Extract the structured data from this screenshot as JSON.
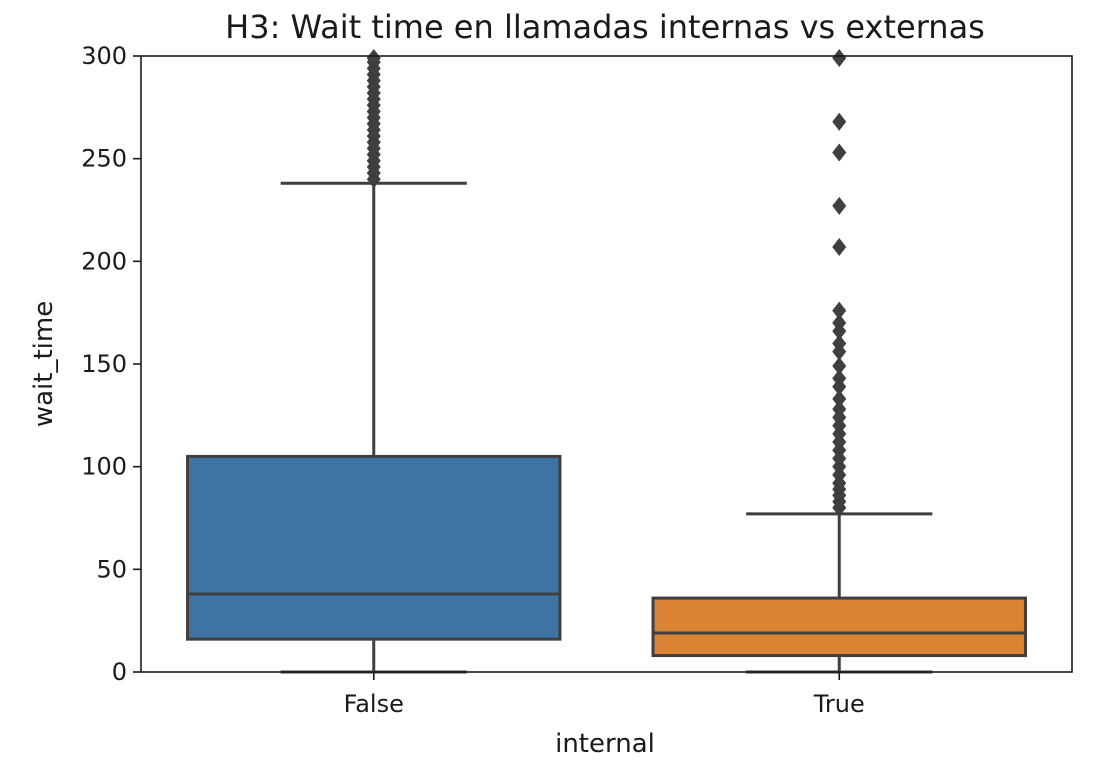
{
  "chart_data": {
    "type": "box",
    "title": "H3: Wait time en llamadas internas vs externas",
    "xlabel": "internal",
    "ylabel": "wait_time",
    "ylim": [
      0,
      300
    ],
    "yticks": [
      0,
      50,
      100,
      150,
      200,
      250,
      300
    ],
    "grid": false,
    "categories": [
      "False",
      "True"
    ],
    "boxes": [
      {
        "category": "False",
        "color": "#3e74a3",
        "whisker_low": 0,
        "q1": 16,
        "median": 38,
        "q3": 105,
        "whisker_high": 238,
        "outliers": [
          240,
          243,
          246,
          249,
          252,
          255,
          258,
          261,
          264,
          267,
          270,
          273,
          276,
          279,
          282,
          285,
          288,
          291,
          294,
          297,
          299
        ]
      },
      {
        "category": "True",
        "color": "#da8335",
        "whisker_low": 0,
        "q1": 8,
        "median": 19,
        "q3": 36,
        "whisker_high": 77,
        "outliers": [
          80,
          83,
          86,
          89,
          92,
          96,
          100,
          104,
          108,
          112,
          116,
          120,
          124,
          128,
          133,
          139,
          143,
          149,
          156,
          160,
          166,
          170,
          176,
          207,
          227,
          253,
          268,
          299
        ]
      }
    ]
  }
}
